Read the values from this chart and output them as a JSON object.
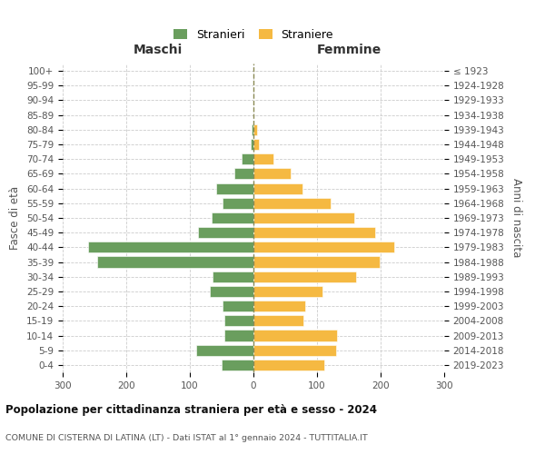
{
  "age_groups": [
    "0-4",
    "5-9",
    "10-14",
    "15-19",
    "20-24",
    "25-29",
    "30-34",
    "35-39",
    "40-44",
    "45-49",
    "50-54",
    "55-59",
    "60-64",
    "65-69",
    "70-74",
    "75-79",
    "80-84",
    "85-89",
    "90-94",
    "95-99",
    "100+"
  ],
  "birth_years": [
    "2019-2023",
    "2014-2018",
    "2009-2013",
    "2004-2008",
    "1999-2003",
    "1994-1998",
    "1989-1993",
    "1984-1988",
    "1979-1983",
    "1974-1978",
    "1969-1973",
    "1964-1968",
    "1959-1963",
    "1954-1958",
    "1949-1953",
    "1944-1948",
    "1939-1943",
    "1934-1938",
    "1929-1933",
    "1924-1928",
    "≤ 1923"
  ],
  "males": [
    50,
    90,
    46,
    46,
    48,
    68,
    65,
    246,
    260,
    87,
    66,
    48,
    58,
    30,
    18,
    5,
    3,
    0,
    0,
    0,
    0
  ],
  "females": [
    112,
    130,
    132,
    78,
    82,
    108,
    162,
    198,
    222,
    192,
    158,
    122,
    77,
    58,
    32,
    8,
    5,
    0,
    0,
    0,
    0
  ],
  "male_color": "#6a9e5e",
  "female_color": "#f5b942",
  "background_color": "#ffffff",
  "grid_color": "#cccccc",
  "dashed_line_color": "#8a8a55",
  "title": "Popolazione per cittadinanza straniera per età e sesso - 2024",
  "subtitle": "COMUNE DI CISTERNA DI LATINA (LT) - Dati ISTAT al 1° gennaio 2024 - TUTTITALIA.IT",
  "header_left": "Maschi",
  "header_right": "Femmine",
  "ylabel_left": "Fasce di età",
  "ylabel_right": "Anni di nascita",
  "legend_male": "Stranieri",
  "legend_female": "Straniere",
  "xlim": 300
}
